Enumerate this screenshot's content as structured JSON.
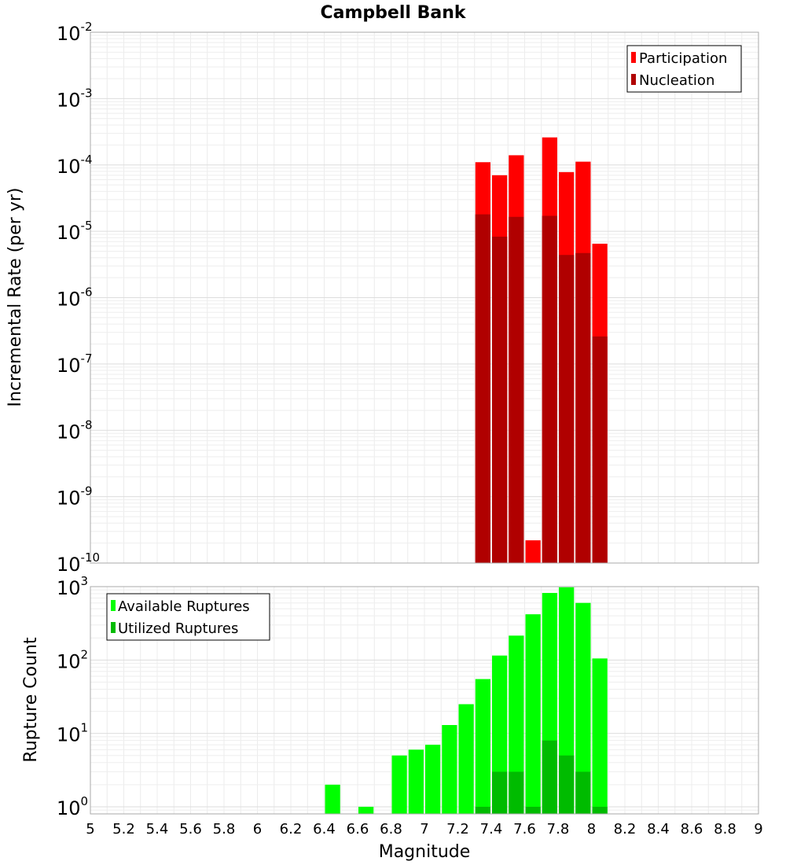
{
  "chart_data": {
    "title": "Campbell Bank",
    "x_axis": {
      "label": "Magnitude",
      "range": [
        5,
        9
      ],
      "tick_labels": [
        "5",
        "5.2",
        "5.4",
        "5.6",
        "5.8",
        "6",
        "6.2",
        "6.4",
        "6.6",
        "6.8",
        "7",
        "7.2",
        "7.4",
        "7.6",
        "7.8",
        "8",
        "8.2",
        "8.4",
        "8.6",
        "8.8",
        "9"
      ]
    },
    "bin_width": 0.1,
    "panels": [
      {
        "type": "bar",
        "y_scale": "log",
        "ylabel": "Incremental Rate (per yr)",
        "ylim": [
          1e-10,
          0.01
        ],
        "y_ticks": [
          {
            "base": "10",
            "exp": "-2",
            "value": 0.01
          },
          {
            "base": "10",
            "exp": "-3",
            "value": 0.001
          },
          {
            "base": "10",
            "exp": "-4",
            "value": 0.0001
          },
          {
            "base": "10",
            "exp": "-5",
            "value": 1e-05
          },
          {
            "base": "10",
            "exp": "-6",
            "value": 1e-06
          },
          {
            "base": "10",
            "exp": "-7",
            "value": 1e-07
          },
          {
            "base": "10",
            "exp": "-8",
            "value": 1e-08
          },
          {
            "base": "10",
            "exp": "-9",
            "value": 1e-09
          },
          {
            "base": "10",
            "exp": "-10",
            "value": 1e-10
          }
        ],
        "legend_position": "top-right",
        "grid": true,
        "x": [
          7.35,
          7.45,
          7.55,
          7.65,
          7.75,
          7.85,
          7.95,
          8.05
        ],
        "series": [
          {
            "name": "Participation",
            "color": "#ff0000",
            "values": [
              0.00011,
              7e-05,
              0.00014,
              2.2e-10,
              0.00026,
              7.8e-05,
              0.000112,
              6.5e-06
            ]
          },
          {
            "name": "Nucleation",
            "color": "#b00000",
            "values": [
              1.8e-05,
              8.3e-06,
              1.65e-05,
              null,
              1.71e-05,
              4.4e-06,
              4.7e-06,
              2.6e-07
            ]
          }
        ]
      },
      {
        "type": "bar",
        "y_scale": "log",
        "ylabel": "Rupture Count",
        "ylim": [
          0.8,
          1000
        ],
        "y_ticks": [
          {
            "base": "10",
            "exp": "3",
            "value": 1000
          },
          {
            "base": "10",
            "exp": "2",
            "value": 100
          },
          {
            "base": "10",
            "exp": "1",
            "value": 10
          },
          {
            "base": "10",
            "exp": "0",
            "value": 1
          }
        ],
        "legend_position": "top-left",
        "grid": true,
        "x": [
          6.45,
          6.65,
          6.85,
          6.95,
          7.05,
          7.15,
          7.25,
          7.35,
          7.45,
          7.55,
          7.65,
          7.75,
          7.85,
          7.95,
          8.05
        ],
        "series": [
          {
            "name": "Available Ruptures",
            "color": "#00ff00",
            "values": [
              2,
              1,
              5,
              6,
              7,
              13,
              25,
              55,
              115,
              215,
              420,
              820,
              980,
              600,
              105
            ]
          },
          {
            "name": "Utilized Ruptures",
            "color": "#00bb00",
            "values": [
              null,
              null,
              null,
              null,
              null,
              null,
              null,
              1,
              3,
              3,
              1,
              8,
              5,
              3,
              1
            ]
          }
        ]
      }
    ]
  }
}
